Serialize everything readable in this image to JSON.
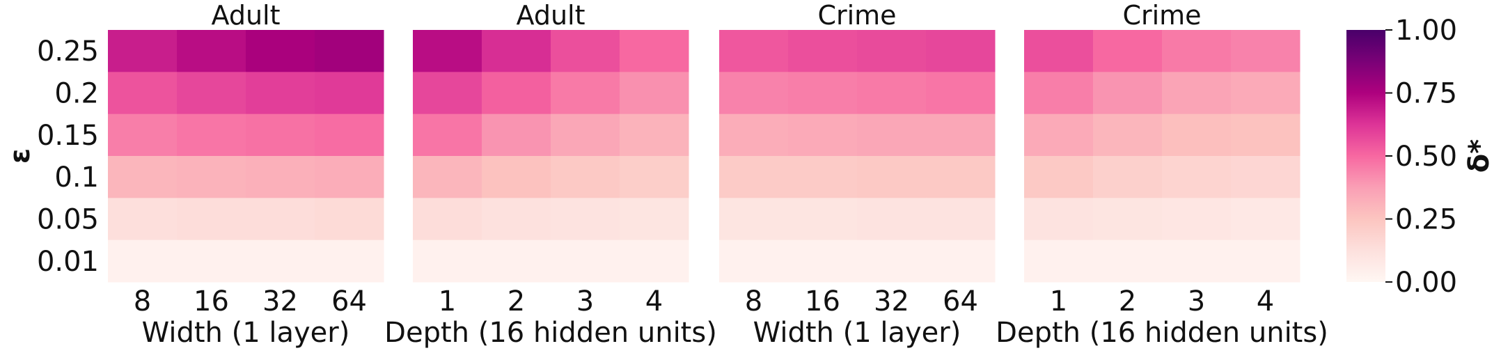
{
  "chart_data": [
    {
      "type": "heatmap",
      "title": "Adult",
      "xlabel": "Width (1 layer)",
      "ylabel": "ε",
      "x": [
        "8",
        "16",
        "32",
        "64"
      ],
      "y": [
        "0.25",
        "0.2",
        "0.15",
        "0.1",
        "0.05",
        "0.01"
      ],
      "values": [
        [
          0.68,
          0.72,
          0.76,
          0.78
        ],
        [
          0.55,
          0.58,
          0.6,
          0.61
        ],
        [
          0.45,
          0.47,
          0.48,
          0.49
        ],
        [
          0.3,
          0.31,
          0.32,
          0.33
        ],
        [
          0.13,
          0.14,
          0.14,
          0.15
        ],
        [
          0.03,
          0.03,
          0.03,
          0.03
        ]
      ]
    },
    {
      "type": "heatmap",
      "title": "Adult",
      "xlabel": "Depth (16 hidden units)",
      "ylabel": "ε",
      "x": [
        "1",
        "2",
        "3",
        "4"
      ],
      "y": [
        "0.25",
        "0.2",
        "0.15",
        "0.1",
        "0.05",
        "0.01"
      ],
      "values": [
        [
          0.72,
          0.64,
          0.56,
          0.5
        ],
        [
          0.58,
          0.52,
          0.46,
          0.41
        ],
        [
          0.47,
          0.4,
          0.35,
          0.31
        ],
        [
          0.3,
          0.26,
          0.23,
          0.21
        ],
        [
          0.14,
          0.12,
          0.11,
          0.1
        ],
        [
          0.03,
          0.03,
          0.03,
          0.03
        ]
      ]
    },
    {
      "type": "heatmap",
      "title": "Crime",
      "xlabel": "Width (1 layer)",
      "ylabel": "ε",
      "x": [
        "8",
        "16",
        "32",
        "64"
      ],
      "y": [
        "0.25",
        "0.2",
        "0.15",
        "0.1",
        "0.05",
        "0.01"
      ],
      "values": [
        [
          0.54,
          0.56,
          0.57,
          0.58
        ],
        [
          0.44,
          0.45,
          0.46,
          0.47
        ],
        [
          0.33,
          0.34,
          0.35,
          0.35
        ],
        [
          0.22,
          0.22,
          0.23,
          0.23
        ],
        [
          0.1,
          0.1,
          0.11,
          0.11
        ],
        [
          0.03,
          0.03,
          0.03,
          0.03
        ]
      ]
    },
    {
      "type": "heatmap",
      "title": "Crime",
      "xlabel": "Depth (16 hidden units)",
      "ylabel": "ε",
      "x": [
        "1",
        "2",
        "3",
        "4"
      ],
      "y": [
        "0.25",
        "0.2",
        "0.15",
        "0.1",
        "0.05",
        "0.01"
      ],
      "values": [
        [
          0.56,
          0.5,
          0.46,
          0.44
        ],
        [
          0.45,
          0.4,
          0.36,
          0.34
        ],
        [
          0.34,
          0.3,
          0.27,
          0.26
        ],
        [
          0.23,
          0.2,
          0.18,
          0.17
        ],
        [
          0.11,
          0.1,
          0.09,
          0.08
        ],
        [
          0.03,
          0.03,
          0.03,
          0.03
        ]
      ]
    }
  ],
  "colorbar": {
    "label": "δ*",
    "ticks": [
      "1.00",
      "0.75",
      "0.50",
      "0.25",
      "0.00"
    ],
    "range": [
      0,
      1
    ],
    "colormap": [
      "#fff7f3",
      "#fde0dd",
      "#fcc5c0",
      "#fa9fb5",
      "#f768a1",
      "#dd3497",
      "#ae017e",
      "#7a0177",
      "#49006a"
    ]
  }
}
